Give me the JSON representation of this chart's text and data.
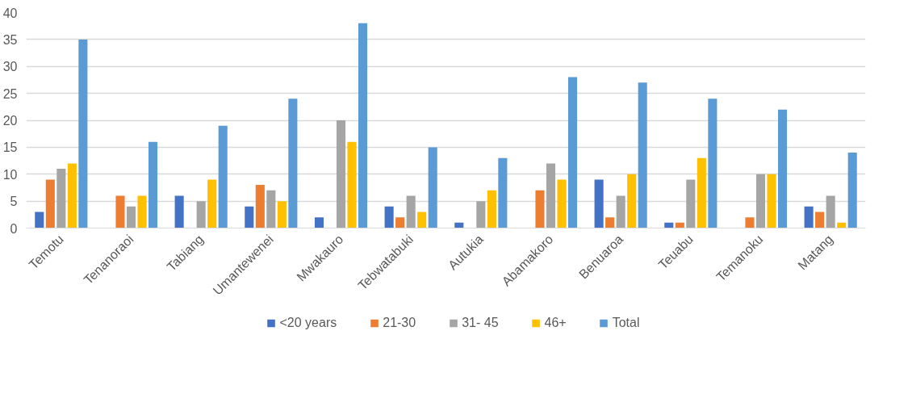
{
  "chart_data": {
    "type": "bar",
    "categories": [
      "Temotu",
      "Tenanoraoi",
      "Tabiang",
      "Umantewenei",
      "Mwakauro",
      "Tebwatabuki",
      "Autukia",
      "Abamakoro",
      "Benuaroa",
      "Teuabu",
      "Temanoku",
      "Matang"
    ],
    "series": [
      {
        "name": "<20 years",
        "color": "#4472c4",
        "values": [
          3,
          0,
          6,
          4,
          2,
          4,
          1,
          0,
          9,
          1,
          0,
          4
        ]
      },
      {
        "name": "21-30",
        "color": "#ed7d31",
        "values": [
          9,
          6,
          0,
          8,
          0,
          2,
          0,
          7,
          2,
          1,
          2,
          3
        ]
      },
      {
        "name": "31- 45",
        "color": "#a5a5a5",
        "values": [
          11,
          4,
          5,
          7,
          20,
          6,
          5,
          12,
          6,
          9,
          10,
          6
        ]
      },
      {
        "name": "46+",
        "color": "#ffc000",
        "values": [
          12,
          6,
          9,
          5,
          16,
          3,
          7,
          9,
          10,
          13,
          10,
          1
        ]
      },
      {
        "name": "Total",
        "color": "#5b9bd5",
        "values": [
          35,
          16,
          19,
          24,
          38,
          15,
          13,
          28,
          27,
          24,
          22,
          14
        ]
      }
    ],
    "ylim": [
      0,
      40
    ],
    "yticks": [
      0,
      5,
      10,
      15,
      20,
      25,
      30,
      35,
      40
    ],
    "grid": "y",
    "legend": "bottom"
  }
}
